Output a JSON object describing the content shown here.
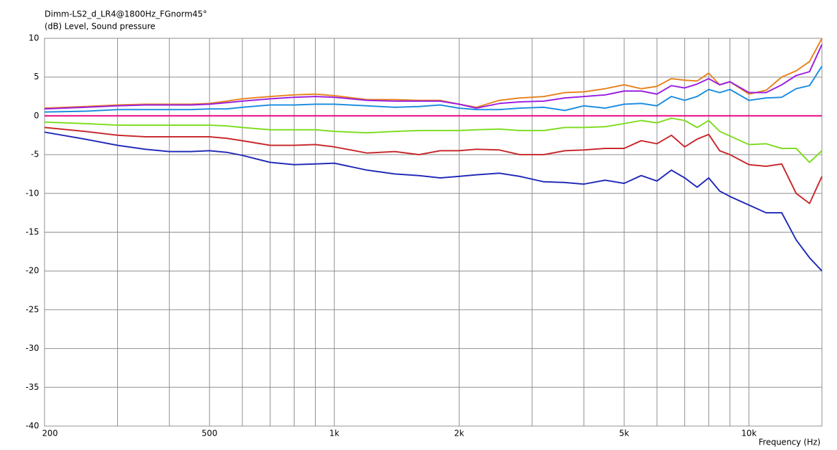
{
  "chart_data": {
    "type": "line",
    "title": "Dimm-LS2_d_LR4@1800Hz_FGnorm45°",
    "y_label": "(dB)  Level, Sound pressure",
    "x_label": "Frequency  (Hz)",
    "log_x": true,
    "grid": true,
    "xlim": [
      200,
      15000
    ],
    "ylim": [
      -40,
      10
    ],
    "xticks": [
      200,
      500,
      {
        "value": 1000,
        "label": "1k"
      },
      {
        "value": 2000,
        "label": "2k"
      },
      {
        "value": 5000,
        "label": "5k"
      },
      {
        "value": 10000,
        "label": "10k"
      }
    ],
    "xminorticks": [
      300,
      400,
      600,
      700,
      800,
      900,
      3000,
      4000,
      6000,
      7000,
      8000,
      9000
    ],
    "yticks": [
      10,
      5,
      0,
      -5,
      -10,
      -15,
      -20,
      -25,
      -30,
      -35,
      -40
    ],
    "x": [
      200,
      250,
      300,
      350,
      400,
      450,
      500,
      550,
      600,
      700,
      800,
      900,
      1000,
      1200,
      1400,
      1600,
      1800,
      2000,
      2200,
      2500,
      2800,
      3200,
      3600,
      4000,
      4500,
      5000,
      5500,
      6000,
      6500,
      7000,
      7500,
      8000,
      8500,
      9000,
      10000,
      11000,
      12000,
      13000,
      14000,
      15000
    ],
    "series": [
      {
        "color": "#e6007e",
        "values": [
          0,
          0,
          0,
          0,
          0,
          0,
          0,
          0,
          0,
          0,
          0,
          0,
          0,
          0,
          0,
          0,
          0,
          0,
          0,
          0,
          0,
          0,
          0,
          0,
          0,
          0,
          0,
          0,
          0,
          0,
          0,
          0,
          0,
          0,
          0,
          0,
          0,
          0,
          0,
          0
        ]
      },
      {
        "color": "#e8821e",
        "values": [
          1.0,
          1.2,
          1.4,
          1.5,
          1.5,
          1.5,
          1.6,
          1.9,
          2.2,
          2.5,
          2.7,
          2.8,
          2.6,
          2.1,
          2.1,
          2.0,
          2.0,
          1.5,
          1.1,
          2.0,
          2.3,
          2.5,
          3.0,
          3.1,
          3.5,
          4.0,
          3.5,
          3.8,
          4.8,
          4.6,
          4.5,
          5.5,
          4.0,
          4.4,
          2.8,
          3.3,
          5.0,
          5.8,
          7.0,
          10.0
        ]
      },
      {
        "color": "#9a1ee0",
        "values": [
          0.9,
          1.1,
          1.3,
          1.4,
          1.4,
          1.4,
          1.5,
          1.7,
          1.9,
          2.2,
          2.4,
          2.5,
          2.4,
          2.0,
          1.9,
          1.9,
          1.9,
          1.5,
          1.0,
          1.6,
          1.8,
          1.9,
          2.3,
          2.5,
          2.7,
          3.2,
          3.2,
          2.8,
          3.9,
          3.6,
          4.1,
          4.8,
          4.0,
          4.4,
          3.0,
          3.0,
          4.0,
          5.2,
          5.7,
          9.2
        ]
      },
      {
        "color": "#1a8ce0",
        "values": [
          0.5,
          0.6,
          0.8,
          0.8,
          0.8,
          0.8,
          0.9,
          0.9,
          1.1,
          1.4,
          1.4,
          1.5,
          1.5,
          1.3,
          1.1,
          1.2,
          1.4,
          1.0,
          0.8,
          0.8,
          1.0,
          1.1,
          0.7,
          1.3,
          1.0,
          1.5,
          1.6,
          1.3,
          2.5,
          2.0,
          2.5,
          3.4,
          3.0,
          3.4,
          2.0,
          2.3,
          2.4,
          3.5,
          3.9,
          6.4
        ]
      },
      {
        "color": "#7ddc1e",
        "values": [
          -0.8,
          -1.0,
          -1.2,
          -1.2,
          -1.2,
          -1.2,
          -1.2,
          -1.3,
          -1.5,
          -1.8,
          -1.8,
          -1.8,
          -2.0,
          -2.2,
          -2.0,
          -1.9,
          -1.9,
          -1.9,
          -1.8,
          -1.7,
          -1.9,
          -1.9,
          -1.5,
          -1.5,
          -1.4,
          -1.0,
          -0.6,
          -0.9,
          -0.3,
          -0.6,
          -1.5,
          -0.6,
          -2.0,
          -2.6,
          -3.7,
          -3.6,
          -4.2,
          -4.2,
          -6.0,
          -4.5
        ]
      },
      {
        "color": "#c8262a",
        "values": [
          -1.5,
          -2.0,
          -2.5,
          -2.7,
          -2.7,
          -2.7,
          -2.7,
          -2.9,
          -3.2,
          -3.8,
          -3.8,
          -3.7,
          -4.0,
          -4.8,
          -4.6,
          -5.0,
          -4.5,
          -4.5,
          -4.3,
          -4.4,
          -5.0,
          -5.0,
          -4.5,
          -4.4,
          -4.2,
          -4.2,
          -3.2,
          -3.6,
          -2.5,
          -4.0,
          -3.0,
          -2.4,
          -4.5,
          -5.0,
          -6.3,
          -6.5,
          -6.2,
          -10.0,
          -11.3,
          -7.8
        ]
      },
      {
        "color": "#2028b8",
        "values": [
          -2.1,
          -3.0,
          -3.8,
          -4.3,
          -4.6,
          -4.6,
          -4.5,
          -4.7,
          -5.1,
          -6.0,
          -6.3,
          -6.2,
          -6.1,
          -7.0,
          -7.5,
          -7.7,
          -8.0,
          -7.8,
          -7.6,
          -7.4,
          -7.8,
          -8.5,
          -8.6,
          -8.8,
          -8.3,
          -8.7,
          -7.7,
          -8.4,
          -7.0,
          -8.0,
          -9.2,
          -8.0,
          -9.7,
          -10.4,
          -11.5,
          -12.5,
          -12.5,
          -16.0,
          -18.3,
          -20.0
        ]
      }
    ]
  }
}
